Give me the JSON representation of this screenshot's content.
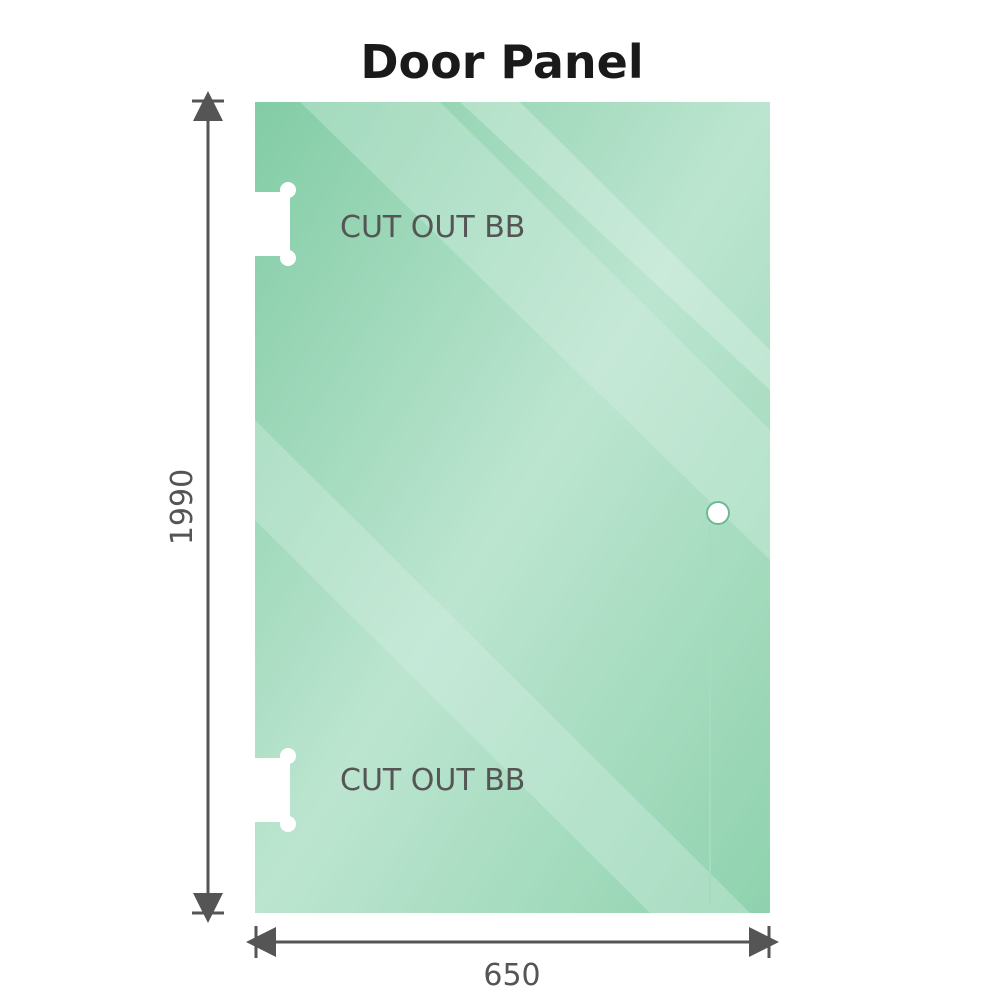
{
  "title": "Door Panel",
  "labels": {
    "cutout_top": "CUT OUT BB",
    "cutout_bottom": "CUT OUT BB"
  },
  "dimensions": {
    "height": "1990",
    "width": "650"
  },
  "colors": {
    "glass": "#86cfa9",
    "glass_light": "#bfe6d2",
    "dimension_line": "#555555"
  }
}
